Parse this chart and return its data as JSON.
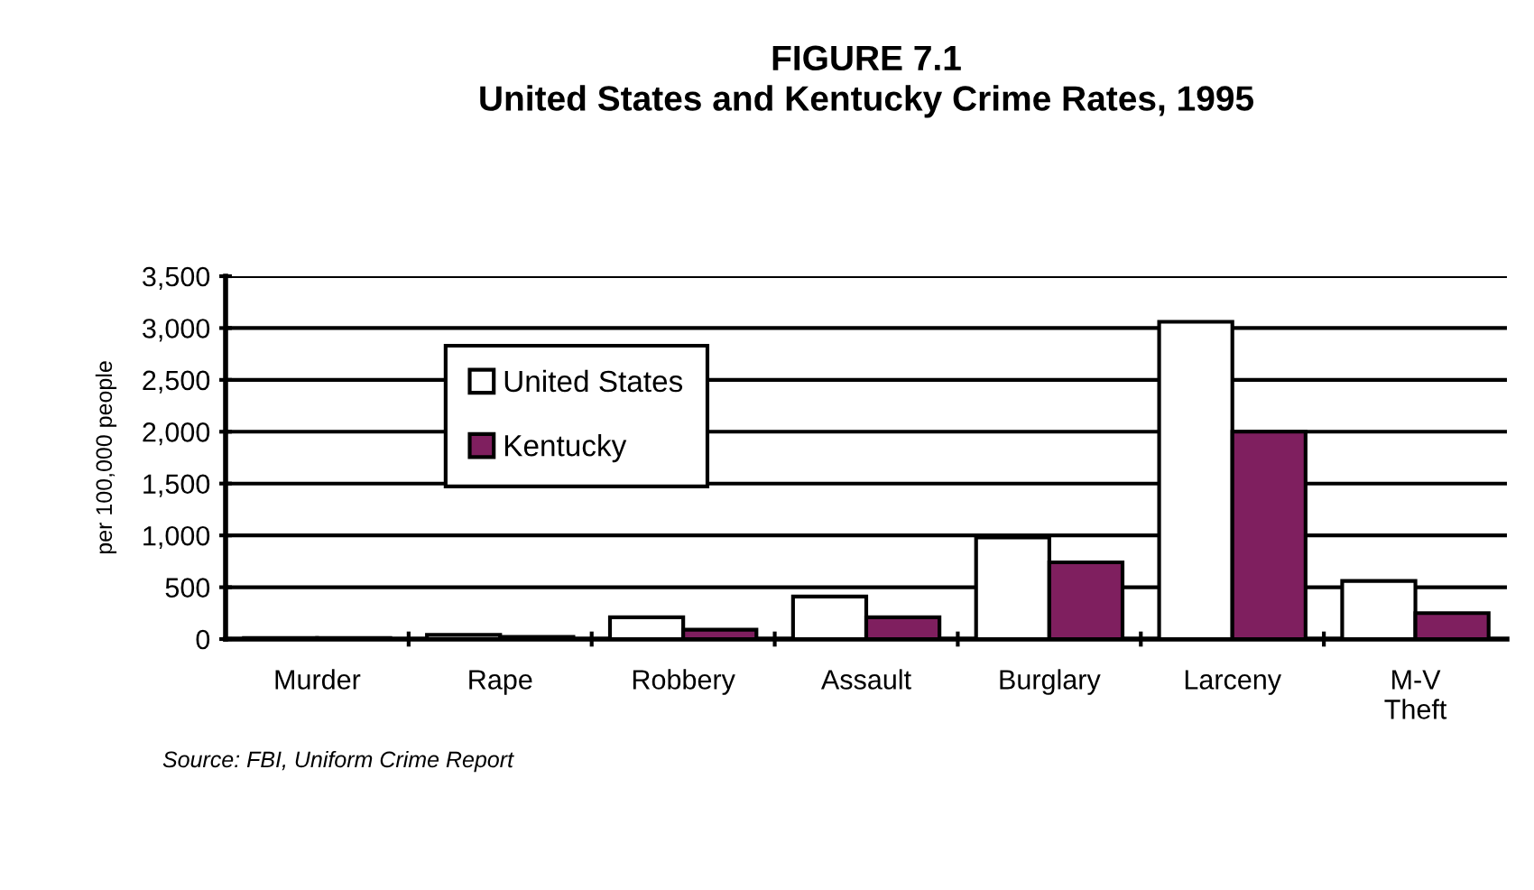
{
  "chart_data": {
    "type": "bar",
    "title": "FIGURE 7.1\nUnited States and Kentucky Crime Rates, 1995",
    "ylabel": "per 100,000 people",
    "categories": [
      "Murder",
      "Rape",
      "Robbery",
      "Assault",
      "Burglary",
      "Larceny",
      "M-V\nTheft"
    ],
    "series": [
      {
        "name": "United States",
        "color": "#ffffff",
        "values": [
          10,
          40,
          210,
          410,
          980,
          3060,
          560
        ]
      },
      {
        "name": "Kentucky",
        "color": "#7f1f5f",
        "values": [
          10,
          20,
          90,
          210,
          740,
          2000,
          250
        ]
      }
    ],
    "ylim": [
      0,
      3500
    ],
    "yticks": [
      {
        "value": 0,
        "label": "0"
      },
      {
        "value": 500,
        "label": "500"
      },
      {
        "value": 1000,
        "label": "1,000"
      },
      {
        "value": 1500,
        "label": "1,500"
      },
      {
        "value": 2000,
        "label": "2,000"
      },
      {
        "value": 2500,
        "label": "2,500"
      },
      {
        "value": 3000,
        "label": "3,000"
      },
      {
        "value": 3500,
        "label": "3,500"
      }
    ],
    "grid": "y",
    "legend": "top left",
    "annotations": [
      "Source: FBI, Uniform Crime Report"
    ]
  }
}
